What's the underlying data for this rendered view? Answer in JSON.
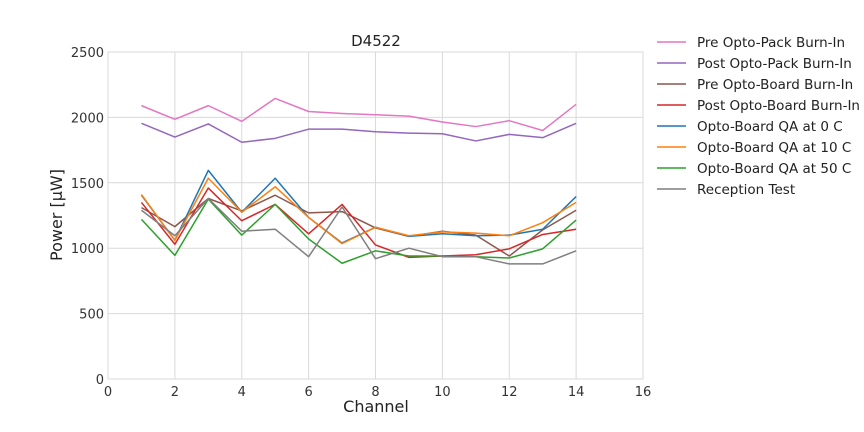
{
  "chart_data": {
    "type": "line",
    "title": "D4522",
    "xlabel": "Channel",
    "ylabel": "Power [μW]",
    "xlim": [
      0,
      16
    ],
    "ylim": [
      0,
      2500
    ],
    "xticks": [
      0,
      2,
      4,
      6,
      8,
      10,
      12,
      14,
      16
    ],
    "yticks": [
      0,
      500,
      1000,
      1500,
      2000,
      2500
    ],
    "grid": true,
    "legend_position": "outside-right",
    "x": [
      1,
      2,
      3,
      4,
      5,
      6,
      7,
      8,
      9,
      10,
      11,
      12,
      13,
      14
    ],
    "series": [
      {
        "name": "Pre Opto-Pack Burn-In",
        "color": "#e377c2",
        "values": [
          2090,
          1985,
          2090,
          1970,
          2145,
          2045,
          2030,
          2020,
          2010,
          1965,
          1930,
          1975,
          1900,
          2100
        ]
      },
      {
        "name": "Post Opto-Pack Burn-In",
        "color": "#9467bd",
        "values": [
          1955,
          1850,
          1950,
          1810,
          1840,
          1910,
          1910,
          1890,
          1880,
          1875,
          1820,
          1870,
          1845,
          1955
        ]
      },
      {
        "name": "Pre Opto-Board Burn-In",
        "color": "#8c564b",
        "values": [
          1310,
          1165,
          1380,
          1285,
          1405,
          1270,
          1280,
          1155,
          1090,
          1130,
          1100,
          940,
          1140,
          1290
        ]
      },
      {
        "name": "Post Opto-Board Burn-In",
        "color": "#d62728",
        "values": [
          1350,
          1030,
          1460,
          1210,
          1335,
          1110,
          1335,
          1025,
          930,
          940,
          950,
          995,
          1105,
          1145
        ]
      },
      {
        "name": "Opto-Board QA at 0 C",
        "color": "#1f77b4",
        "values": [
          1405,
          1060,
          1595,
          1275,
          1535,
          1235,
          1040,
          1160,
          1090,
          1110,
          1095,
          1100,
          1145,
          1395
        ]
      },
      {
        "name": "Opto-Board QA at 10 C",
        "color": "#ff7f0e",
        "values": [
          1410,
          1060,
          1535,
          1275,
          1470,
          1235,
          1035,
          1160,
          1095,
          1125,
          1115,
          1095,
          1195,
          1350
        ]
      },
      {
        "name": "Opto-Board QA at 50 C",
        "color": "#2ca02c",
        "values": [
          1220,
          945,
          1375,
          1100,
          1335,
          1070,
          885,
          980,
          940,
          940,
          935,
          925,
          995,
          1215
        ]
      },
      {
        "name": "Reception Test",
        "color": "#7f7f7f",
        "values": [
          1290,
          1095,
          1380,
          1130,
          1145,
          935,
          1315,
          920,
          1000,
          935,
          935,
          880,
          880,
          980
        ]
      }
    ]
  }
}
